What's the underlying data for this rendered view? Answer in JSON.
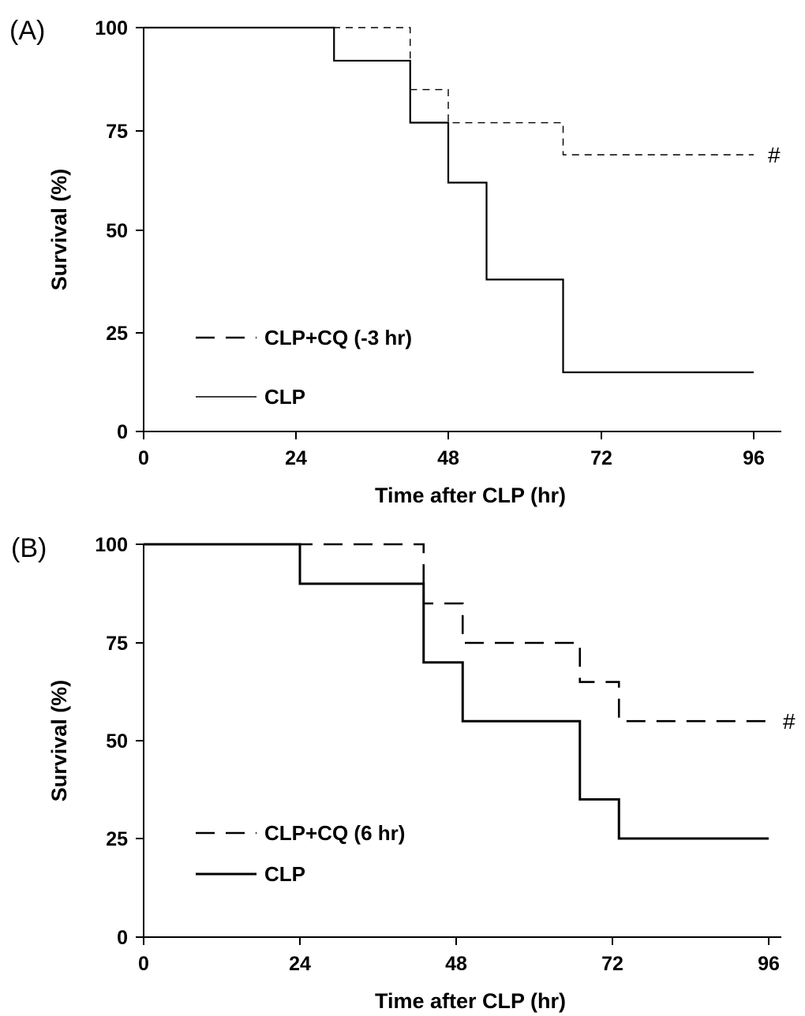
{
  "chart_data": [
    {
      "type": "line",
      "panel_label": "(A)",
      "xlabel": "Time after CLP (hr)",
      "ylabel": "Survival (%)",
      "xlim": [
        0,
        96
      ],
      "ylim": [
        0,
        100
      ],
      "x_ticks": [
        "0",
        "24",
        "48",
        "72",
        "96"
      ],
      "y_ticks": [
        "0",
        "25",
        "50",
        "75",
        "100"
      ],
      "legend_position": "lower-left",
      "series": [
        {
          "name": "CLP+CQ (-3 hr)",
          "style": "dashed",
          "color": "#000000",
          "x": [
            0,
            42,
            48,
            66,
            96
          ],
          "y": [
            100,
            85,
            77,
            69,
            69
          ]
        },
        {
          "name": "CLP",
          "style": "solid",
          "color": "#000000",
          "x": [
            0,
            30,
            42,
            48,
            54,
            66,
            96
          ],
          "y": [
            100,
            92,
            77,
            62,
            38,
            15,
            15
          ]
        }
      ],
      "annotations": [
        {
          "text": "#",
          "x": 96,
          "y": 69
        }
      ]
    },
    {
      "type": "line",
      "panel_label": "(B)",
      "xlabel": "Time after CLP (hr)",
      "ylabel": "Survival (%)",
      "xlim": [
        0,
        96
      ],
      "ylim": [
        0,
        100
      ],
      "x_ticks": [
        "0",
        "24",
        "48",
        "72",
        "96"
      ],
      "y_ticks": [
        "0",
        "25",
        "50",
        "75",
        "100"
      ],
      "legend_position": "lower-left",
      "series": [
        {
          "name": "CLP+CQ (6 hr)",
          "style": "dashed",
          "color": "#000000",
          "x": [
            0,
            43,
            49,
            67,
            73,
            96
          ],
          "y": [
            100,
            85,
            75,
            65,
            55,
            55
          ]
        },
        {
          "name": "CLP",
          "style": "solid",
          "color": "#000000",
          "x": [
            0,
            24,
            43,
            49,
            67,
            73,
            96
          ],
          "y": [
            100,
            90,
            70,
            55,
            35,
            25,
            25
          ]
        }
      ],
      "annotations": [
        {
          "text": "#",
          "x": 96,
          "y": 55
        }
      ]
    }
  ]
}
